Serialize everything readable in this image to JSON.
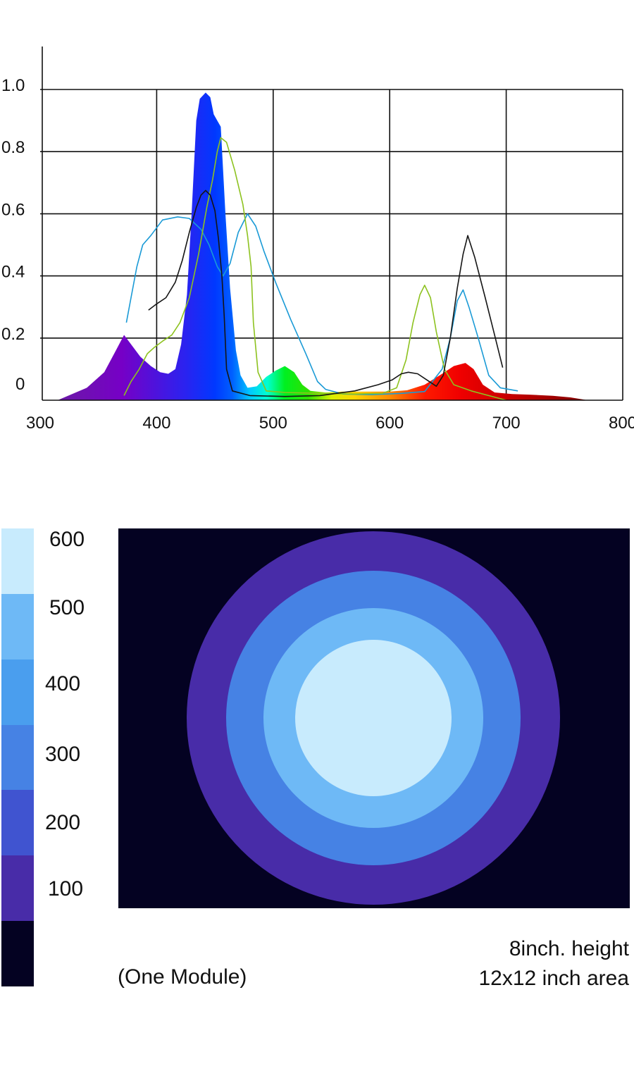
{
  "chart_data": [
    {
      "type": "area",
      "x_ticks": [
        "300",
        "400",
        "500",
        "600",
        "700",
        "800"
      ],
      "y_ticks": [
        "0",
        "0.2",
        "0.4",
        "0.6",
        "0.8",
        "1.0"
      ],
      "xlim": [
        300,
        800
      ],
      "ylim": [
        0,
        1.05
      ],
      "grid": true,
      "series": [
        {
          "kind": "filled-spectrum",
          "color": "#0a2cff",
          "points": [
            [
              315,
              0
            ],
            [
              340,
              0.04
            ],
            [
              355,
              0.09
            ],
            [
              365,
              0.16
            ],
            [
              372,
              0.21
            ],
            [
              378,
              0.18
            ],
            [
              386,
              0.14
            ],
            [
              395,
              0.11
            ],
            [
              403,
              0.09
            ],
            [
              410,
              0.085
            ],
            [
              416,
              0.1
            ],
            [
              421,
              0.18
            ],
            [
              426,
              0.34
            ],
            [
              430,
              0.6
            ],
            [
              434,
              0.9
            ],
            [
              437,
              0.97
            ],
            [
              442,
              0.99
            ],
            [
              446,
              0.975
            ],
            [
              449,
              0.92
            ],
            [
              452,
              0.9
            ],
            [
              455,
              0.88
            ],
            [
              459,
              0.6
            ],
            [
              463,
              0.36
            ],
            [
              468,
              0.16
            ],
            [
              472,
              0.08
            ],
            [
              478,
              0.04
            ],
            [
              486,
              0.045
            ],
            [
              494,
              0.075
            ],
            [
              502,
              0.095
            ],
            [
              510,
              0.11
            ],
            [
              518,
              0.09
            ],
            [
              525,
              0.05
            ],
            [
              532,
              0.03
            ],
            [
              545,
              0.025
            ],
            [
              560,
              0.028
            ],
            [
              580,
              0.028
            ],
            [
              600,
              0.028
            ],
            [
              615,
              0.032
            ],
            [
              630,
              0.05
            ],
            [
              645,
              0.085
            ],
            [
              655,
              0.11
            ],
            [
              665,
              0.12
            ],
            [
              672,
              0.1
            ],
            [
              680,
              0.05
            ],
            [
              690,
              0.025
            ],
            [
              705,
              0.02
            ],
            [
              720,
              0.018
            ],
            [
              740,
              0.014
            ],
            [
              755,
              0.009
            ],
            [
              770,
              0
            ]
          ]
        },
        {
          "kind": "line",
          "color": "#1a9ad6",
          "points": [
            [
              374,
              0.25
            ],
            [
              378,
              0.33
            ],
            [
              383,
              0.43
            ],
            [
              388,
              0.5
            ],
            [
              395,
              0.53
            ],
            [
              405,
              0.58
            ],
            [
              418,
              0.59
            ],
            [
              428,
              0.585
            ],
            [
              438,
              0.55
            ],
            [
              445,
              0.5
            ],
            [
              452,
              0.43
            ],
            [
              457,
              0.4
            ],
            [
              463,
              0.44
            ],
            [
              470,
              0.54
            ],
            [
              478,
              0.6
            ],
            [
              485,
              0.56
            ],
            [
              492,
              0.48
            ],
            [
              502,
              0.38
            ],
            [
              515,
              0.26
            ],
            [
              528,
              0.15
            ],
            [
              538,
              0.06
            ],
            [
              545,
              0.035
            ],
            [
              560,
              0.02
            ],
            [
              585,
              0.018
            ],
            [
              610,
              0.022
            ],
            [
              630,
              0.028
            ],
            [
              645,
              0.1
            ],
            [
              652,
              0.2
            ],
            [
              658,
              0.32
            ],
            [
              663,
              0.355
            ],
            [
              668,
              0.3
            ],
            [
              676,
              0.2
            ],
            [
              685,
              0.08
            ],
            [
              695,
              0.04
            ],
            [
              710,
              0.03
            ]
          ]
        },
        {
          "kind": "line",
          "color": "#8dc21f",
          "points": [
            [
              372,
              0.015
            ],
            [
              378,
              0.06
            ],
            [
              385,
              0.1
            ],
            [
              392,
              0.15
            ],
            [
              398,
              0.17
            ],
            [
              405,
              0.19
            ],
            [
              413,
              0.21
            ],
            [
              420,
              0.25
            ],
            [
              428,
              0.33
            ],
            [
              436,
              0.47
            ],
            [
              443,
              0.62
            ],
            [
              448,
              0.71
            ],
            [
              452,
              0.8
            ],
            [
              455,
              0.845
            ],
            [
              460,
              0.83
            ],
            [
              467,
              0.74
            ],
            [
              474,
              0.63
            ],
            [
              478,
              0.53
            ],
            [
              481,
              0.43
            ],
            [
              483,
              0.25
            ],
            [
              487,
              0.09
            ],
            [
              494,
              0.03
            ],
            [
              510,
              0.025
            ],
            [
              540,
              0.022
            ],
            [
              570,
              0.02
            ],
            [
              594,
              0.022
            ],
            [
              606,
              0.04
            ],
            [
              614,
              0.13
            ],
            [
              620,
              0.25
            ],
            [
              626,
              0.34
            ],
            [
              630,
              0.37
            ],
            [
              635,
              0.33
            ],
            [
              640,
              0.22
            ],
            [
              647,
              0.1
            ],
            [
              655,
              0.05
            ],
            [
              670,
              0.03
            ],
            [
              690,
              0.01
            ],
            [
              700,
              0
            ]
          ]
        },
        {
          "kind": "line",
          "color": "#151515",
          "points": [
            [
              393,
              0.29
            ],
            [
              400,
              0.31
            ],
            [
              408,
              0.33
            ],
            [
              416,
              0.38
            ],
            [
              422,
              0.45
            ],
            [
              428,
              0.54
            ],
            [
              434,
              0.62
            ],
            [
              438,
              0.66
            ],
            [
              442,
              0.675
            ],
            [
              446,
              0.66
            ],
            [
              450,
              0.61
            ],
            [
              453,
              0.52
            ],
            [
              456,
              0.4
            ],
            [
              458,
              0.27
            ],
            [
              460,
              0.1
            ],
            [
              465,
              0.03
            ],
            [
              480,
              0.015
            ],
            [
              510,
              0.012
            ],
            [
              540,
              0.015
            ],
            [
              570,
              0.03
            ],
            [
              590,
              0.05
            ],
            [
              602,
              0.065
            ],
            [
              610,
              0.085
            ],
            [
              616,
              0.09
            ],
            [
              624,
              0.085
            ],
            [
              632,
              0.065
            ],
            [
              640,
              0.045
            ],
            [
              646,
              0.08
            ],
            [
              652,
              0.2
            ],
            [
              658,
              0.36
            ],
            [
              663,
              0.47
            ],
            [
              667,
              0.53
            ],
            [
              673,
              0.46
            ],
            [
              682,
              0.33
            ],
            [
              690,
              0.21
            ],
            [
              697,
              0.105
            ]
          ]
        }
      ]
    },
    {
      "type": "heatmap",
      "levels": [
        "100",
        "200",
        "300",
        "400",
        "500",
        "600"
      ],
      "swatches": [
        "#040222",
        "#482ca8",
        "#4054d0",
        "#4682e4",
        "#4a9eee",
        "#6eb9f6",
        "#c8ebfd"
      ],
      "ring_colors": [
        "#040222",
        "#482ca8",
        "#4682e4",
        "#6eb9f6",
        "#c8ebfd"
      ],
      "ring_radii_in": [
        3.2,
        2.54,
        1.9,
        1.31
      ]
    }
  ],
  "captions": {
    "module": "(One Module)",
    "height": "8inch. height",
    "area": "12x12 inch area"
  }
}
